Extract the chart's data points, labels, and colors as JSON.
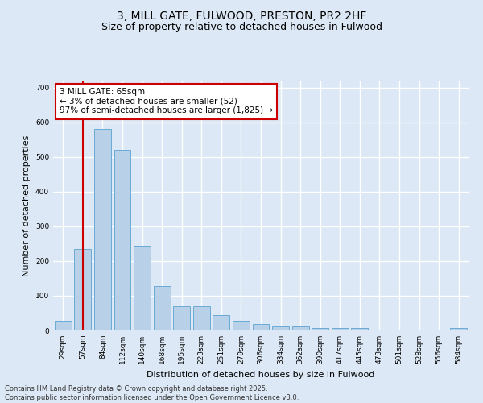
{
  "title_line1": "3, MILL GATE, FULWOOD, PRESTON, PR2 2HF",
  "title_line2": "Size of property relative to detached houses in Fulwood",
  "xlabel": "Distribution of detached houses by size in Fulwood",
  "ylabel": "Number of detached properties",
  "categories": [
    "29sqm",
    "57sqm",
    "84sqm",
    "112sqm",
    "140sqm",
    "168sqm",
    "195sqm",
    "223sqm",
    "251sqm",
    "279sqm",
    "306sqm",
    "334sqm",
    "362sqm",
    "390sqm",
    "417sqm",
    "445sqm",
    "473sqm",
    "501sqm",
    "528sqm",
    "556sqm",
    "584sqm"
  ],
  "values": [
    28,
    235,
    580,
    520,
    243,
    127,
    70,
    70,
    44,
    27,
    18,
    12,
    12,
    6,
    8,
    8,
    0,
    0,
    0,
    0,
    6
  ],
  "bar_color": "#b8d0e8",
  "bar_edge_color": "#6aaad4",
  "annotation_box_text": "3 MILL GATE: 65sqm\n← 3% of detached houses are smaller (52)\n97% of semi-detached houses are larger (1,825) →",
  "annotation_box_color": "#ffffff",
  "annotation_box_edge_color": "#cc0000",
  "vline_color": "#cc0000",
  "vline_x_index": 1,
  "background_color": "#dce8f5",
  "grid_color": "#ffffff",
  "ylim": [
    0,
    720
  ],
  "yticks": [
    0,
    100,
    200,
    300,
    400,
    500,
    600,
    700
  ],
  "footer_line1": "Contains HM Land Registry data © Crown copyright and database right 2025.",
  "footer_line2": "Contains public sector information licensed under the Open Government Licence v3.0.",
  "title_fontsize": 10,
  "subtitle_fontsize": 9,
  "axis_label_fontsize": 8,
  "tick_fontsize": 6.5,
  "annotation_fontsize": 7.5,
  "footer_fontsize": 6
}
